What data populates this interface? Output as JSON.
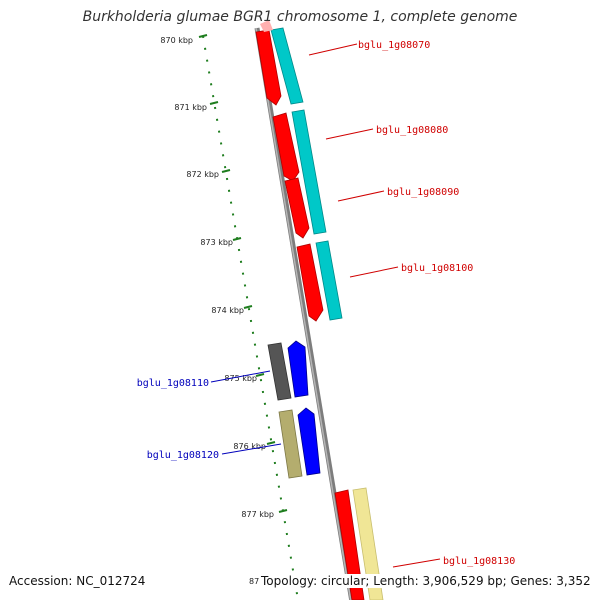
{
  "title": "Burkholderia glumae BGR1 chromosome 1, complete genome",
  "accession_text": "Accession: NC_012724",
  "summary_text": "Topology: circular; Length: 3,906,529 bp; Genes: 3,352",
  "colors": {
    "backbone": "#8c8c8c",
    "ruler": "#1e7d1e",
    "forward_label": "#d00000",
    "reverse_label": "#0000bb",
    "red_gene": "#ff0000",
    "cyan_gene": "#00c8c8",
    "blue_gene": "#0000ff",
    "gray_gene": "#555555",
    "olive_gene": "#b4ad6e",
    "pale_yellow_gene": "#f0e696"
  },
  "ruler_ticks": [
    {
      "label": "870 kbp"
    },
    {
      "label": "871 kbp"
    },
    {
      "label": "872 kbp"
    },
    {
      "label": "873 kbp"
    },
    {
      "label": "874 kbp"
    },
    {
      "label": "875 kbp"
    },
    {
      "label": "876 kbp"
    },
    {
      "label": "877 kbp"
    },
    {
      "label": "87"
    }
  ],
  "gene_labels": [
    {
      "text": "bglu_1g08070",
      "strand": "forward"
    },
    {
      "text": "bglu_1g08080",
      "strand": "forward"
    },
    {
      "text": "bglu_1g08090",
      "strand": "forward"
    },
    {
      "text": "bglu_1g08100",
      "strand": "forward"
    },
    {
      "text": "bglu_1g08110",
      "strand": "reverse"
    },
    {
      "text": "bglu_1g08120",
      "strand": "reverse"
    },
    {
      "text": "bglu_1g08130",
      "strand": "forward"
    }
  ]
}
